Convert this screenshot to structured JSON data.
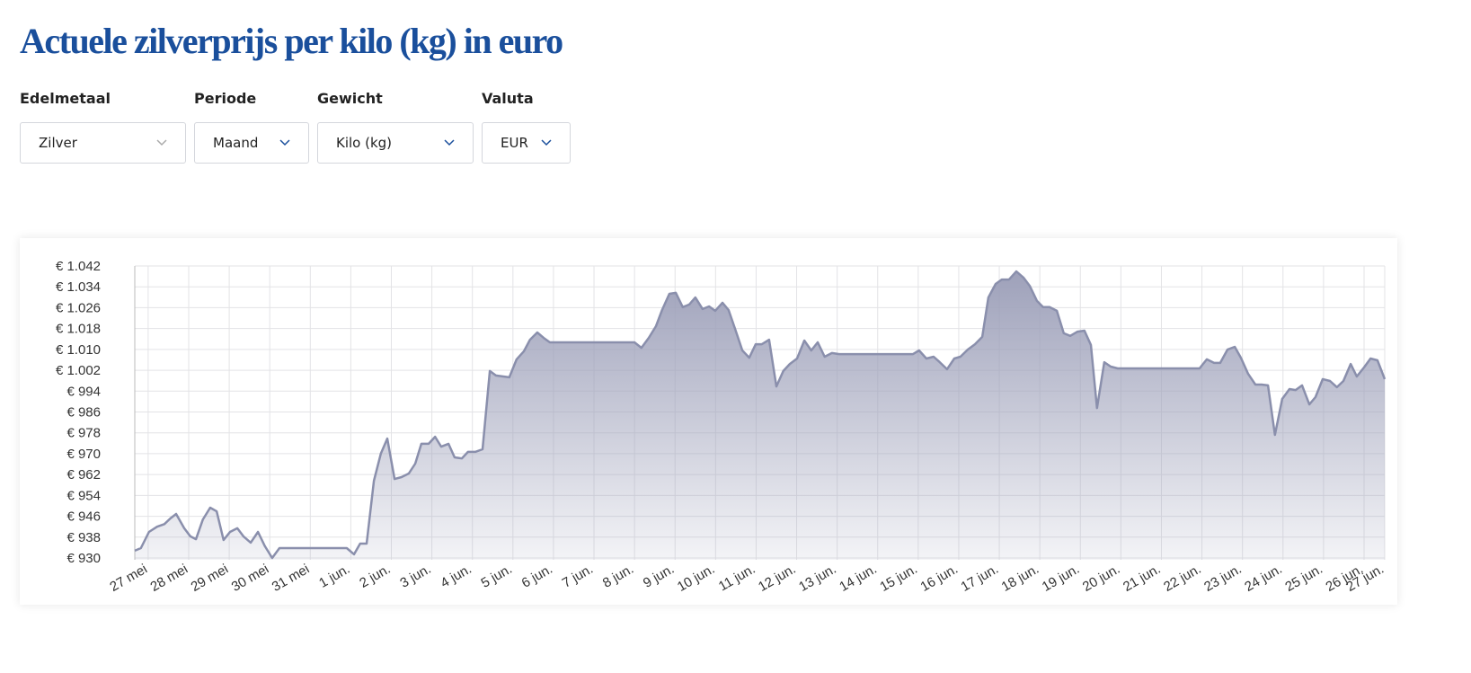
{
  "header": {
    "title": "Actuele zilverprijs per kilo (kg) in euro"
  },
  "filters": [
    {
      "label": "Edelmetaal",
      "value": "Zilver"
    },
    {
      "label": "Periode",
      "value": "Maand"
    },
    {
      "label": "Gewicht",
      "value": "Kilo (kg)"
    },
    {
      "label": "Valuta",
      "value": "EUR"
    }
  ],
  "chart_data": {
    "type": "area",
    "color": "#8a8fac",
    "grid": true,
    "x": [
      -0.33,
      -0.18,
      0.02,
      0.22,
      0.4,
      0.55,
      0.69,
      0.89,
      1.04,
      1.18,
      1.35,
      1.53,
      1.69,
      1.86,
      2.02,
      2.2,
      2.35,
      2.53,
      2.71,
      2.88,
      3.06,
      3.24,
      4.9,
      5.08,
      5.23,
      5.39,
      5.57,
      5.74,
      5.9,
      6.08,
      6.25,
      6.43,
      6.59,
      6.74,
      6.92,
      7.08,
      7.23,
      7.41,
      7.56,
      7.74,
      7.89,
      8.07,
      8.25,
      8.43,
      8.58,
      8.76,
      8.91,
      9.09,
      9.27,
      9.42,
      9.6,
      9.76,
      9.91,
      12.0,
      12.17,
      12.35,
      12.53,
      12.68,
      12.86,
      13.02,
      13.19,
      13.35,
      13.5,
      13.68,
      13.84,
      13.99,
      14.17,
      14.32,
      14.48,
      14.66,
      14.83,
      14.99,
      15.14,
      15.32,
      15.5,
      15.67,
      15.83,
      16.01,
      16.19,
      16.36,
      16.52,
      16.69,
      16.87,
      17.05,
      18.87,
      19.02,
      19.2,
      19.38,
      19.53,
      19.71,
      19.89,
      20.04,
      20.22,
      20.4,
      20.58,
      20.73,
      20.91,
      21.06,
      21.24,
      21.42,
      21.6,
      21.75,
      21.93,
      22.08,
      22.24,
      22.42,
      22.59,
      22.75,
      22.93,
      23.1,
      23.26,
      23.41,
      23.59,
      23.75,
      23.92,
      25.94,
      26.12,
      26.3,
      26.45,
      26.63,
      26.81,
      26.96,
      27.14,
      27.32,
      27.47,
      27.63,
      27.8,
      27.98,
      28.16,
      28.31,
      28.47,
      28.65,
      28.8,
      28.98,
      29.16,
      29.33,
      29.49,
      29.67,
      29.82,
      30.0,
      30.16,
      30.33,
      30.51
    ],
    "values": [
      932.8,
      933.8,
      940,
      942,
      943,
      945.2,
      946.9,
      941.4,
      938.3,
      937.2,
      944.8,
      949.3,
      947.9,
      936.9,
      940,
      941.4,
      938.3,
      935.9,
      940,
      934.5,
      930,
      933.8,
      933.8,
      931.4,
      935.5,
      935.5,
      959.6,
      970,
      975.8,
      960.3,
      961,
      962.4,
      966.2,
      973.8,
      973.8,
      976.5,
      972.7,
      973.8,
      968.6,
      968.2,
      970.7,
      970.7,
      971.7,
      1001.7,
      1000,
      999.6,
      999.3,
      1006.2,
      1009.3,
      1013.7,
      1016.5,
      1014.4,
      1012.7,
      1012.7,
      1010.6,
      1014.4,
      1018.9,
      1025.1,
      1031.3,
      1031.7,
      1026.2,
      1027.2,
      1029.9,
      1025.5,
      1026.5,
      1024.8,
      1027.9,
      1025.1,
      1017.9,
      1009.6,
      1006.8,
      1012,
      1012,
      1013.7,
      995.8,
      1001.7,
      1004.4,
      1006.5,
      1013.4,
      1009.6,
      1012.7,
      1007.2,
      1008.6,
      1008.2,
      1008.2,
      1009.6,
      1006.5,
      1007.2,
      1005.1,
      1002.4,
      1006.5,
      1007.2,
      1009.9,
      1012,
      1014.8,
      1029.9,
      1035.1,
      1036.8,
      1036.8,
      1039.9,
      1037.5,
      1034.4,
      1028.6,
      1026.2,
      1026.2,
      1024.8,
      1016.2,
      1015.2,
      1016.8,
      1017.2,
      1011.7,
      987.5,
      1005.1,
      1003.4,
      1002.7,
      1002.7,
      1006.2,
      1004.8,
      1004.8,
      1009.9,
      1011,
      1006.8,
      1000.6,
      996.5,
      996.5,
      996.2,
      977.2,
      991,
      994.8,
      994.4,
      996.2,
      988.9,
      991.7,
      998.6,
      997.9,
      995.5,
      997.9,
      1004.4,
      999.6,
      1003.1,
      1006.5,
      1005.8,
      998.6
    ],
    "xlim": [
      -0.33,
      30.51
    ],
    "ylim": [
      930,
      1042
    ],
    "yticks": [
      {
        "value": 930,
        "label": "€ 930"
      },
      {
        "value": 938,
        "label": "€ 938"
      },
      {
        "value": 946,
        "label": "€ 946"
      },
      {
        "value": 954,
        "label": "€ 954"
      },
      {
        "value": 962,
        "label": "€ 962"
      },
      {
        "value": 970,
        "label": "€ 970"
      },
      {
        "value": 978,
        "label": "€ 978"
      },
      {
        "value": 986,
        "label": "€ 986"
      },
      {
        "value": 994,
        "label": "€ 994"
      },
      {
        "value": 1002,
        "label": "€ 1.002"
      },
      {
        "value": 1010,
        "label": "€ 1.010"
      },
      {
        "value": 1018,
        "label": "€ 1.018"
      },
      {
        "value": 1026,
        "label": "€ 1.026"
      },
      {
        "value": 1034,
        "label": "€ 1.034"
      },
      {
        "value": 1042,
        "label": "€ 1.042"
      }
    ],
    "xticks": [
      {
        "value": 0,
        "label": "27 mei"
      },
      {
        "value": 1,
        "label": "28 mei"
      },
      {
        "value": 2,
        "label": "29 mei"
      },
      {
        "value": 3,
        "label": "30 mei"
      },
      {
        "value": 4,
        "label": "31 mei"
      },
      {
        "value": 5,
        "label": "1 jun."
      },
      {
        "value": 6,
        "label": "2 jun."
      },
      {
        "value": 7,
        "label": "3 jun."
      },
      {
        "value": 8,
        "label": "4 jun."
      },
      {
        "value": 9,
        "label": "5 jun."
      },
      {
        "value": 10,
        "label": "6 jun."
      },
      {
        "value": 11,
        "label": "7 jun."
      },
      {
        "value": 12,
        "label": "8 jun."
      },
      {
        "value": 13,
        "label": "9 jun."
      },
      {
        "value": 14,
        "label": "10 jun."
      },
      {
        "value": 15,
        "label": "11 jun."
      },
      {
        "value": 16,
        "label": "12 jun."
      },
      {
        "value": 17,
        "label": "13 jun."
      },
      {
        "value": 18,
        "label": "14 jun."
      },
      {
        "value": 19,
        "label": "15 jun."
      },
      {
        "value": 20,
        "label": "16 jun."
      },
      {
        "value": 21,
        "label": "17 jun."
      },
      {
        "value": 22,
        "label": "18 jun."
      },
      {
        "value": 23,
        "label": "19 jun."
      },
      {
        "value": 24,
        "label": "20 jun."
      },
      {
        "value": 25,
        "label": "21 jun."
      },
      {
        "value": 26,
        "label": "22 jun."
      },
      {
        "value": 27,
        "label": "23 jun."
      },
      {
        "value": 28,
        "label": "24 jun."
      },
      {
        "value": 29,
        "label": "25 jun."
      },
      {
        "value": 30,
        "label": "26 jun."
      },
      {
        "value": 30.51,
        "label": "27 jun."
      }
    ]
  }
}
